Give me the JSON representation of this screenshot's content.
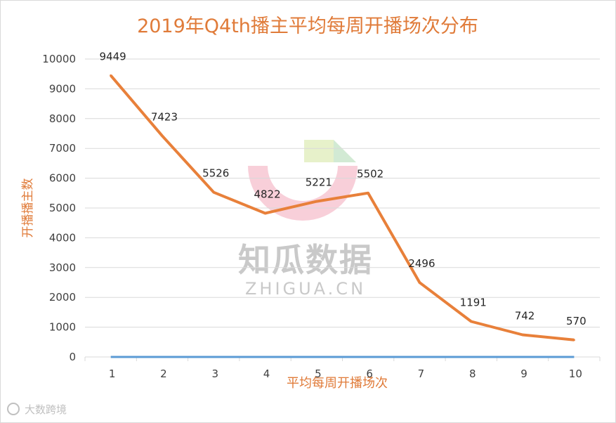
{
  "watermark": {
    "brand": "知瓜数据",
    "domain": "ZHIGUA.CN",
    "corner": "大数跨境"
  },
  "colors": {
    "line": "#e8803a",
    "baseline": "#5b9bd5",
    "title": "#e07b39",
    "grid": "#d9d9d9"
  },
  "chart_data": {
    "type": "line",
    "title": "2019年Q4th播主平均每周开播场次分布",
    "xlabel": "平均每周开播场次",
    "ylabel": "开播播主数",
    "categories": [
      "1",
      "2",
      "3",
      "4",
      "5",
      "6",
      "7",
      "8",
      "9",
      "10"
    ],
    "ylim": [
      0,
      10000
    ],
    "yticks": [
      "0",
      "1000",
      "2000",
      "3000",
      "4000",
      "5000",
      "6000",
      "7000",
      "8000",
      "9000",
      "10000"
    ],
    "grid": true,
    "series": [
      {
        "values": [
          9449,
          7423,
          5526,
          4822,
          5221,
          5502,
          2496,
          1191,
          742,
          570
        ],
        "labels": [
          "9449",
          "7423",
          "5526",
          "4822",
          "5221",
          "5502",
          "2496",
          "1191",
          "742",
          "570"
        ]
      },
      {
        "values": [
          0,
          0,
          0,
          0,
          0,
          0,
          0,
          0,
          0,
          0
        ]
      }
    ]
  }
}
